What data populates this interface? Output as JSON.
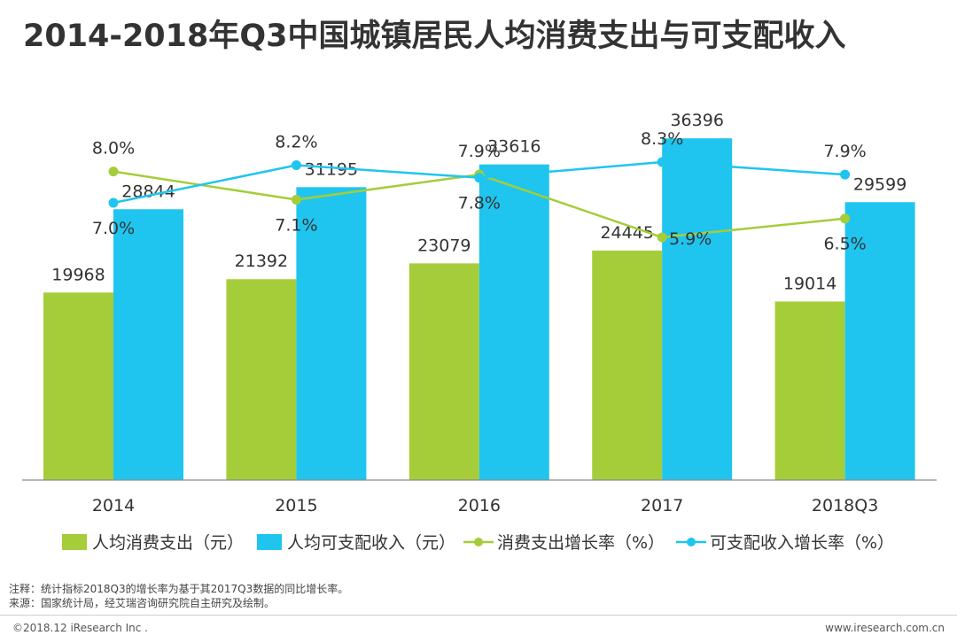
{
  "title": "2014-2018年Q3中国城镇居民人均消费支出与可支配收入",
  "chart_data": {
    "type": "bar",
    "title": "2014-2018年Q3中国城镇居民人均消费支出与可支配收入",
    "categories": [
      "2014",
      "2015",
      "2016",
      "2017",
      "2018Q3"
    ],
    "series": [
      {
        "name": "人均消费支出（元）",
        "type": "bar",
        "color": "#a5cd39",
        "values": [
          19968,
          21392,
          23079,
          24445,
          19014
        ]
      },
      {
        "name": "人均可支配收入（元）",
        "type": "bar",
        "color": "#1fc5ef",
        "values": [
          28844,
          31195,
          33616,
          36396,
          29599
        ]
      },
      {
        "name": "消费支出增长率（%）",
        "type": "line",
        "color": "#a5cd39",
        "values": [
          8.0,
          7.1,
          7.9,
          5.9,
          6.5
        ],
        "labels": [
          "8.0%",
          "7.1%",
          "7.9%",
          "5.9%",
          "6.5%"
        ]
      },
      {
        "name": "可支配收入增长率（%）",
        "type": "line",
        "color": "#1fc5ef",
        "values": [
          7.0,
          8.2,
          7.8,
          8.3,
          7.9
        ],
        "labels": [
          "7.0%",
          "8.2%",
          "7.8%",
          "8.3%",
          "7.9%"
        ]
      }
    ],
    "ylim_bar": [
      0,
      50000
    ],
    "ylim_line": [
      0,
      25
    ],
    "legend": "bottom",
    "grid": false
  },
  "notes": {
    "note": "注释：统计指标2018Q3的增长率为基于其2017Q3数据的同比增长率。",
    "source": "来源：国家统计局，经艾瑞咨询研究院自主研究及绘制。"
  },
  "footer": {
    "copyright": "©2018.12 iResearch Inc .",
    "website": "www.iresearch.com.cn"
  }
}
